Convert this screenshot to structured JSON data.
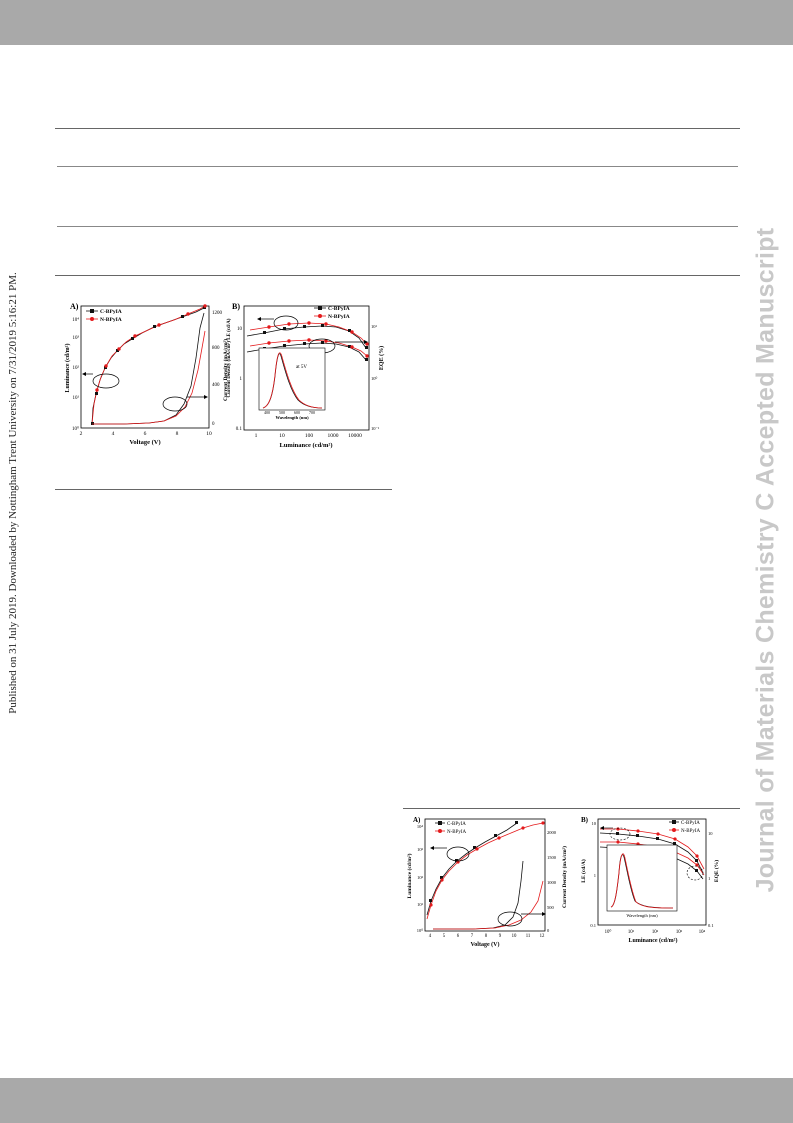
{
  "side_note": "Published on 31 July 2019. Downloaded by Nottingham Trent University on 7/31/2019 5:16:21 PM.",
  "watermark": "Journal of Materials Chemistry C Accepted Manuscript",
  "figure1": {
    "panel_a": {
      "label": "A)",
      "legend": [
        "C-BPyIA",
        "N-BPyIA"
      ],
      "xlabel": "Voltage (V)",
      "ylabel_left": "Luminance (cd/m²)",
      "ylabel_right": "Current Density (mA/cm²)",
      "xticks": [
        "2",
        "4",
        "6",
        "8",
        "10"
      ],
      "yticks_left": [
        "10⁰",
        "10¹",
        "10²",
        "10³",
        "10⁴"
      ],
      "yticks_right": [
        "0",
        "400",
        "800",
        "1200"
      ]
    },
    "panel_b": {
      "label": "B)",
      "legend": [
        "C-BPyIA",
        "N-BPyIA"
      ],
      "xlabel": "Luminance (cd/m²)",
      "ylabel_left": "Current Density (mA/cm²) LE (cd/A)",
      "ylabel_right": "EQE (%)",
      "xticks": [
        "1",
        "10",
        "100",
        "1000",
        "10000"
      ],
      "yticks_left": [
        "0.1",
        "1",
        "10"
      ],
      "yticks_right": [
        "10⁻¹",
        "10⁰",
        "10¹"
      ],
      "inset_note": "at 5V",
      "inset_xlabel": "Wavelength (nm)",
      "inset_xticks": [
        "400",
        "500",
        "600",
        "700"
      ]
    }
  },
  "figure2": {
    "panel_a": {
      "label": "A)",
      "legend": [
        "C-BPyIA",
        "N-BPyIA"
      ],
      "xlabel": "Voltage (V)",
      "ylabel_left": "Luminance (cd/m²)",
      "ylabel_right": "Current Density (mA/cm²)",
      "xticks": [
        "4",
        "5",
        "6",
        "7",
        "8",
        "9",
        "10",
        "11",
        "12"
      ],
      "yticks_left": [
        "10⁰",
        "10¹",
        "10²",
        "10³",
        "10⁴"
      ],
      "yticks_right": [
        "0",
        "500",
        "1000",
        "1500",
        "2000"
      ]
    },
    "panel_b": {
      "label": "B)",
      "legend": [
        "C-BPyIA",
        "N-BPyIA"
      ],
      "xlabel": "Luminance (cd/m²)",
      "ylabel_left": "LE (cd/A)",
      "ylabel_right": "EQE (%)",
      "xticks": [
        "10⁰",
        "10¹",
        "10²",
        "10³",
        "10⁴"
      ],
      "yticks_left": [
        "0.1",
        "1",
        "10"
      ],
      "yticks_right": [
        "0.1",
        "1",
        "10"
      ],
      "inset_xlabel": "Wavelength (nm)"
    }
  },
  "colors": {
    "black_series": "#111111",
    "red_series": "#e41a1c",
    "rule": "#666666",
    "bar": "#a9a9a9",
    "watermark": "#c8c8c8"
  }
}
